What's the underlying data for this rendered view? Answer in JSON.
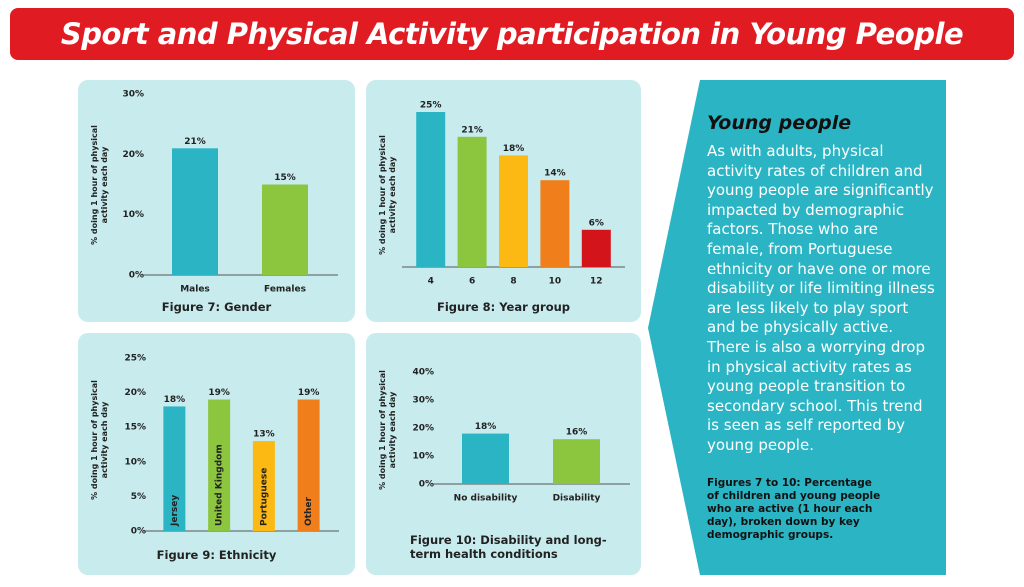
{
  "title": "Sport and Physical Activity participation in Young People",
  "chart_data": [
    {
      "type": "bar",
      "title": "Figure 7: Gender",
      "ylabel": "% doing 1 hour of physical activity each day",
      "categories": [
        "Males",
        "Females"
      ],
      "values": [
        21,
        15
      ],
      "value_labels": [
        "21%",
        "15%"
      ],
      "colors": [
        "#2bb5c4",
        "#8cc63f"
      ],
      "ylim": [
        0,
        30
      ],
      "yticks": [
        {
          "value": 0,
          "label": "0%"
        },
        {
          "value": 10,
          "label": "10%"
        },
        {
          "value": 20,
          "label": "20%"
        },
        {
          "value": 30,
          "label": "30%"
        }
      ]
    },
    {
      "type": "bar",
      "title": "Figure 8: Year group",
      "ylabel": "% doing 1 hour of physical activity each day",
      "categories": [
        "4",
        "6",
        "8",
        "10",
        "12"
      ],
      "values": [
        25,
        21,
        18,
        14,
        6
      ],
      "value_labels": [
        "25%",
        "21%",
        "18%",
        "14%",
        "6%"
      ],
      "colors": [
        "#2bb5c4",
        "#8cc63f",
        "#fdb913",
        "#f07f1b",
        "#d4141b"
      ],
      "ylim": [
        0,
        25
      ]
    },
    {
      "type": "bar",
      "title": "Figure 9: Ethnicity",
      "ylabel": "% doing 1 hour of physical activity each day",
      "categories": [
        "Jersey",
        "United Kingdom",
        "Portuguese",
        "Other"
      ],
      "values": [
        18,
        19,
        13,
        19
      ],
      "value_labels": [
        "18%",
        "19%",
        "13%",
        "19%"
      ],
      "colors": [
        "#2bb5c4",
        "#8cc63f",
        "#fdb913",
        "#f07f1b"
      ],
      "ylim": [
        0,
        25
      ],
      "yticks": [
        {
          "value": 0,
          "label": "0%"
        },
        {
          "value": 5,
          "label": "5%"
        },
        {
          "value": 10,
          "label": "10%"
        },
        {
          "value": 15,
          "label": "15%"
        },
        {
          "value": 20,
          "label": "20%"
        },
        {
          "value": 25,
          "label": "25%"
        }
      ]
    },
    {
      "type": "bar",
      "title": "Figure 10: Disability and long-term health conditions",
      "ylabel": "% doing 1 hour of physical activity each day",
      "categories": [
        "No disability",
        "Disability"
      ],
      "values": [
        18,
        16
      ],
      "value_labels": [
        "18%",
        "16%"
      ],
      "colors": [
        "#2bb5c4",
        "#8cc63f"
      ],
      "ylim": [
        0,
        40
      ],
      "yticks": [
        {
          "value": 0,
          "label": "0%"
        },
        {
          "value": 10,
          "label": "10%"
        },
        {
          "value": 20,
          "label": "20%"
        },
        {
          "value": 30,
          "label": "30%"
        },
        {
          "value": 40,
          "label": "40%"
        }
      ]
    }
  ],
  "panel": {
    "heading": "Young people",
    "body": "As with adults, physical activity rates of children and young people are significantly impacted by demographic factors. Those who are female, from Portuguese ethnicity or have one or more disability or life limiting illness are less likely to play sport and be physically active. There is also a worrying drop in physical activity rates as young people transition to secondary school. This trend is seen as self reported by young people.",
    "note": "Figures 7 to 10: Percentage of children and young people who are active (1 hour each day), broken down by key demographic groups."
  }
}
